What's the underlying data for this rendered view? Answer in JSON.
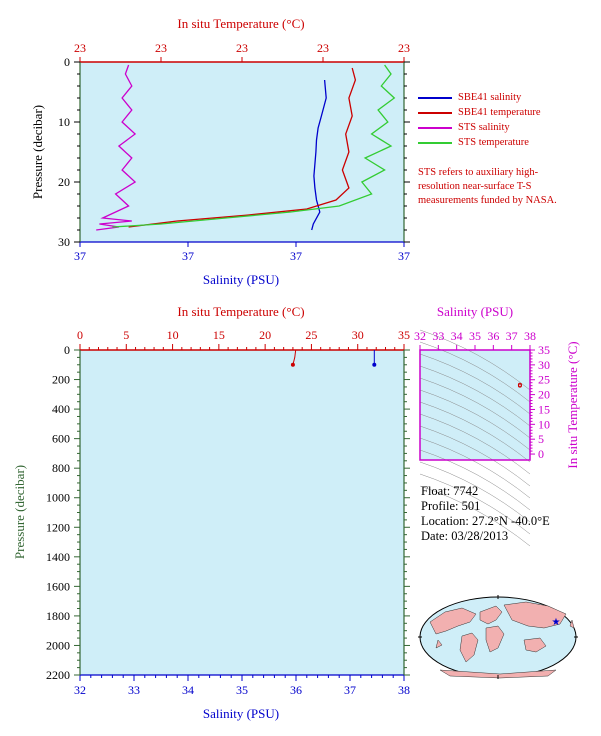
{
  "chart_data": [
    {
      "type": "line",
      "panel": "upper profile",
      "title": "",
      "x_top_label": "In situ Temperature (°C)",
      "x_top_ticks": [
        "23",
        "23",
        "23",
        "23",
        "23"
      ],
      "x_bottom_label": "Salinity (PSU)",
      "x_bottom_ticks": [
        "37",
        "37",
        "37",
        "37"
      ],
      "ylabel": "Pressure (decibar)",
      "ylim": [
        30,
        0
      ],
      "yticks": [
        0,
        10,
        20,
        30
      ],
      "series": [
        {
          "name": "SBE41 salinity",
          "color": "#0000cc",
          "axis": "salinity",
          "points": [
            [
              0.755,
              3
            ],
            [
              0.76,
              6
            ],
            [
              0.745,
              9
            ],
            [
              0.735,
              11
            ],
            [
              0.73,
              13
            ],
            [
              0.728,
              15
            ],
            [
              0.725,
              17
            ],
            [
              0.722,
              19
            ],
            [
              0.725,
              21
            ],
            [
              0.73,
              23
            ],
            [
              0.74,
              25
            ],
            [
              0.72,
              27
            ],
            [
              0.715,
              28
            ]
          ]
        },
        {
          "name": "SBE41 temperature",
          "color": "#cc0000",
          "axis": "temperature",
          "points": [
            [
              0.84,
              1
            ],
            [
              0.85,
              3
            ],
            [
              0.83,
              6
            ],
            [
              0.84,
              9
            ],
            [
              0.82,
              12
            ],
            [
              0.83,
              15
            ],
            [
              0.81,
              18
            ],
            [
              0.83,
              21
            ],
            [
              0.79,
              23
            ],
            [
              0.7,
              24.5
            ],
            [
              0.52,
              25.5
            ],
            [
              0.3,
              26.5
            ],
            [
              0.15,
              27.5
            ]
          ]
        },
        {
          "name": "STS salinity",
          "color": "#cc00cc",
          "axis": "salinity",
          "points": [
            [
              0.15,
              0.5
            ],
            [
              0.14,
              2
            ],
            [
              0.16,
              4
            ],
            [
              0.13,
              6
            ],
            [
              0.16,
              8
            ],
            [
              0.13,
              10
            ],
            [
              0.17,
              12
            ],
            [
              0.12,
              14
            ],
            [
              0.16,
              16
            ],
            [
              0.13,
              18
            ],
            [
              0.17,
              20
            ],
            [
              0.11,
              22
            ],
            [
              0.15,
              24
            ],
            [
              0.07,
              26
            ],
            [
              0.16,
              26.5
            ],
            [
              0.06,
              27
            ],
            [
              0.12,
              27.5
            ],
            [
              0.05,
              28
            ]
          ]
        },
        {
          "name": "STS temperature",
          "color": "#33cc33",
          "axis": "temperature",
          "points": [
            [
              0.94,
              0.5
            ],
            [
              0.96,
              2
            ],
            [
              0.93,
              4
            ],
            [
              0.97,
              6
            ],
            [
              0.92,
              8
            ],
            [
              0.95,
              10
            ],
            [
              0.9,
              12
            ],
            [
              0.96,
              14
            ],
            [
              0.88,
              16
            ],
            [
              0.94,
              18
            ],
            [
              0.87,
              20
            ],
            [
              0.9,
              22
            ],
            [
              0.8,
              24
            ],
            [
              0.65,
              25
            ],
            [
              0.45,
              26
            ],
            [
              0.25,
              27
            ],
            [
              0.1,
              27.5
            ]
          ]
        }
      ],
      "legend_position": "right"
    },
    {
      "type": "line",
      "panel": "lower full-depth profile",
      "title": "",
      "x_top_label": "In situ Temperature (°C)",
      "x_top_ticks": [
        0,
        5,
        10,
        15,
        20,
        25,
        30,
        35
      ],
      "x_bottom_label": "Salinity (PSU)",
      "x_bottom_ticks": [
        32,
        33,
        34,
        35,
        36,
        37,
        38
      ],
      "ylabel": "Pressure (decibar)",
      "ylim": [
        2200,
        0
      ],
      "yticks": [
        0,
        200,
        400,
        600,
        800,
        1000,
        1200,
        1400,
        1600,
        1800,
        2000,
        2200
      ],
      "series": [
        {
          "name": "temperature",
          "color": "#cc0000",
          "points": [
            [
              23.3,
              0
            ],
            [
              23.2,
              50
            ],
            [
              23.0,
              100
            ]
          ]
        },
        {
          "name": "salinity",
          "color": "#0000cc",
          "points": [
            [
              37.45,
              0
            ],
            [
              37.45,
              50
            ],
            [
              37.45,
              100
            ]
          ]
        }
      ]
    },
    {
      "type": "scatter",
      "panel": "T-S diagram",
      "title": "",
      "xlabel": "Salinity (PSU)",
      "x_ticks": [
        32,
        33,
        34,
        35,
        36,
        37,
        38
      ],
      "ylabel": "In situ Temperature (°C)",
      "y_ticks": [
        0,
        5,
        10,
        15,
        20,
        25,
        30,
        35
      ],
      "xlim": [
        32,
        38
      ],
      "ylim": [
        -2,
        35
      ],
      "series": [
        {
          "color": "#cc0000",
          "points": [
            [
              37.45,
              23.3
            ],
            [
              37.45,
              23.0
            ]
          ]
        }
      ]
    }
  ],
  "upper_legend": [
    {
      "label": "SBE41 salinity",
      "color": "#0000cc"
    },
    {
      "label": "SBE41 temperature",
      "color": "#cc0000"
    },
    {
      "label": "STS salinity",
      "color": "#cc00cc"
    },
    {
      "label": "STS temperature",
      "color": "#33cc33"
    }
  ],
  "note": "STS refers to auxiliary high-resolution near-surface T-S measurements funded by NASA.",
  "float_info": {
    "float": "Float:  7742",
    "profile": "Profile:  501",
    "location": "Location:  27.2°N  -40.0°E",
    "date": "Date:  03/28/2013"
  },
  "colors": {
    "plot_bg": "#cfeef8",
    "temperature": "#cc0000",
    "salinity_ts": "#cc00cc",
    "pressure_axis": "#336633",
    "salinity_axis": "#0000cc",
    "map_land": "#f2b0b0",
    "map_ocean": "#cfeef8"
  },
  "map": {
    "float_marker": "star-icon"
  }
}
